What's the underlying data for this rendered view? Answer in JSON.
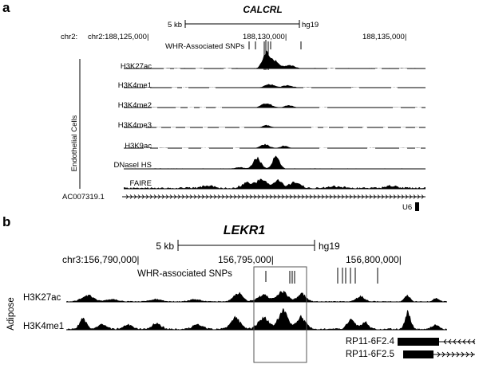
{
  "panels": [
    {
      "letter": "a",
      "gene": "CALCRL",
      "scale_label": "5 kb",
      "assembly": "hg19",
      "chrom_prefix": "chr2:",
      "coord_ticks": [
        "chr2:188,125,000|",
        "188,130,000|",
        "188,135,000|"
      ],
      "snp_label": "WHR-Associated SNPs",
      "group_label": "Endothelial Cells",
      "tracks": [
        "H3K27ac",
        "H3K4me1",
        "H3K4me2",
        "H3K4me3",
        "H3K9ac",
        "DNaseI HS",
        "FAIRE"
      ],
      "gene_track": "AC007319.1",
      "extra_gene": "U6"
    },
    {
      "letter": "b",
      "gene": "LEKR1",
      "scale_label": "5 kb",
      "assembly": "hg19",
      "coord_ticks": [
        "chr3:156,790,000|",
        "156,795,000|",
        "156,800,000|"
      ],
      "snp_label": "WHR-associated SNPs",
      "group_label": "Adipose",
      "tracks": [
        "H3K27ac",
        "H3K4me1"
      ],
      "genes": [
        "RP11-6F2.4",
        "RP11-6F2.5"
      ]
    }
  ]
}
